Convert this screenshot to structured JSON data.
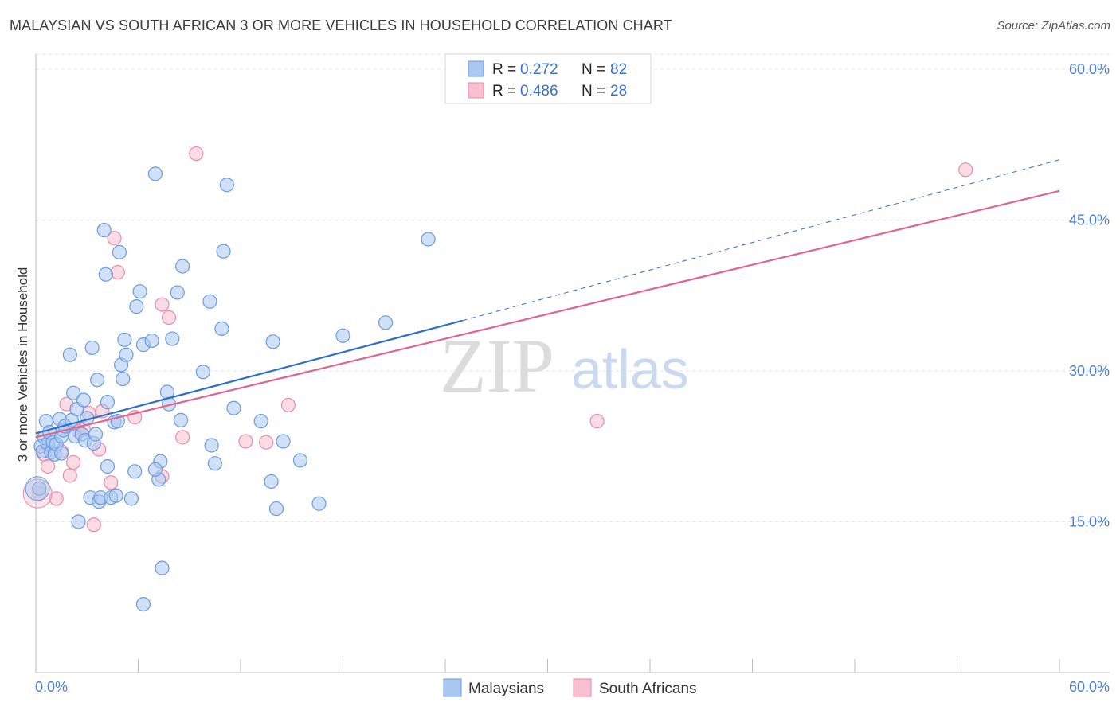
{
  "header": {
    "title": "MALAYSIAN VS SOUTH AFRICAN 3 OR MORE VEHICLES IN HOUSEHOLD CORRELATION CHART",
    "source": "Source: ZipAtlas.com"
  },
  "watermark": {
    "zip": "ZIP",
    "atlas": "atlas"
  },
  "colors": {
    "malaysian_fill": "#a9c8f0",
    "malaysian_stroke": "#6a9be0",
    "malaysian_line": "#2f6fcc",
    "southafrican_fill": "#f7bfd0",
    "southafrican_stroke": "#e88aa8",
    "southafrican_line": "#e0648e",
    "grid": "#e3e3e3",
    "tick_text": "#4a7fcf"
  },
  "legend": {
    "rows": [
      {
        "r_label": "R =",
        "r_value": "0.272",
        "n_label": "N =",
        "n_value": "82"
      },
      {
        "r_label": "R =",
        "r_value": "0.486",
        "n_label": "N =",
        "n_value": "28"
      }
    ]
  },
  "chart_data": {
    "type": "scatter",
    "title": "MALAYSIAN VS SOUTH AFRICAN 3 OR MORE VEHICLES IN HOUSEHOLD CORRELATION CHART",
    "xlabel": "",
    "ylabel": "3 or more Vehicles in Household",
    "xlim": [
      0,
      60
    ],
    "ylim": [
      0,
      61.5
    ],
    "x_tick_labels": [
      "0.0%",
      "60.0%"
    ],
    "y_ticks": [
      15,
      30,
      45,
      60
    ],
    "y_tick_labels": [
      "15.0%",
      "30.0%",
      "45.0%",
      "60.0%"
    ],
    "grid": true,
    "legend_position": "bottom",
    "series": [
      {
        "name": "Malaysians",
        "r": 0.272,
        "n": 82,
        "trend": {
          "x0": 0,
          "y0": 23.8,
          "x1": 25,
          "y1": 35.0,
          "dashed_to_x": 60,
          "dashed_to_y": 51.0
        },
        "points": [
          [
            0.2,
            18.3
          ],
          [
            0.3,
            22.5
          ],
          [
            0.4,
            22.0
          ],
          [
            0.5,
            23.4
          ],
          [
            0.6,
            25.0
          ],
          [
            0.7,
            22.8
          ],
          [
            0.8,
            23.9
          ],
          [
            0.9,
            21.9
          ],
          [
            1.0,
            22.9
          ],
          [
            1.1,
            21.7
          ],
          [
            1.2,
            22.7
          ],
          [
            1.4,
            25.2
          ],
          [
            1.5,
            23.5
          ],
          [
            1.5,
            21.8
          ],
          [
            1.6,
            24.1
          ],
          [
            1.7,
            24.5
          ],
          [
            2.0,
            31.6
          ],
          [
            2.1,
            25.1
          ],
          [
            2.2,
            27.8
          ],
          [
            2.3,
            23.5
          ],
          [
            2.4,
            26.2
          ],
          [
            2.5,
            15.0
          ],
          [
            2.7,
            23.7
          ],
          [
            2.8,
            27.1
          ],
          [
            2.9,
            23.1
          ],
          [
            3.0,
            25.3
          ],
          [
            3.2,
            17.4
          ],
          [
            3.3,
            32.3
          ],
          [
            3.4,
            22.8
          ],
          [
            3.5,
            23.7
          ],
          [
            3.6,
            29.1
          ],
          [
            3.7,
            17.0
          ],
          [
            3.8,
            17.4
          ],
          [
            4.0,
            44.0
          ],
          [
            4.1,
            39.6
          ],
          [
            4.2,
            26.9
          ],
          [
            4.2,
            20.5
          ],
          [
            4.4,
            17.4
          ],
          [
            4.6,
            24.9
          ],
          [
            4.7,
            17.6
          ],
          [
            4.8,
            25.0
          ],
          [
            4.9,
            41.8
          ],
          [
            5.0,
            30.6
          ],
          [
            5.1,
            29.2
          ],
          [
            5.2,
            33.1
          ],
          [
            5.3,
            31.6
          ],
          [
            5.6,
            17.3
          ],
          [
            5.8,
            20.0
          ],
          [
            5.9,
            36.4
          ],
          [
            6.1,
            37.9
          ],
          [
            6.3,
            32.6
          ],
          [
            6.8,
            33.0
          ],
          [
            7.0,
            49.6
          ],
          [
            7.2,
            19.2
          ],
          [
            7.3,
            21.0
          ],
          [
            7.4,
            10.4
          ],
          [
            7.7,
            27.9
          ],
          [
            7.8,
            26.7
          ],
          [
            8.0,
            33.2
          ],
          [
            8.3,
            37.8
          ],
          [
            8.5,
            25.1
          ],
          [
            8.6,
            40.4
          ],
          [
            9.8,
            29.9
          ],
          [
            10.2,
            36.9
          ],
          [
            10.3,
            22.6
          ],
          [
            10.5,
            20.8
          ],
          [
            10.9,
            34.2
          ],
          [
            11.0,
            41.9
          ],
          [
            11.2,
            48.5
          ],
          [
            11.6,
            26.3
          ],
          [
            13.2,
            25.0
          ],
          [
            13.8,
            19.0
          ],
          [
            13.9,
            32.9
          ],
          [
            14.1,
            16.3
          ],
          [
            14.5,
            23.0
          ],
          [
            15.5,
            21.1
          ],
          [
            16.6,
            16.8
          ],
          [
            18.0,
            33.5
          ],
          [
            20.5,
            34.8
          ],
          [
            23.0,
            43.1
          ],
          [
            6.3,
            6.8
          ],
          [
            7.0,
            20.2
          ]
        ]
      },
      {
        "name": "South Africans",
        "r": 0.486,
        "n": 28,
        "trend": {
          "x0": 0,
          "y0": 23.4,
          "x1": 60,
          "y1": 47.9
        },
        "points": [
          [
            0.2,
            17.8
          ],
          [
            0.5,
            21.7
          ],
          [
            0.7,
            20.5
          ],
          [
            1.2,
            17.3
          ],
          [
            1.5,
            22.0
          ],
          [
            1.8,
            26.7
          ],
          [
            2.0,
            19.6
          ],
          [
            2.2,
            20.9
          ],
          [
            2.5,
            24.0
          ],
          [
            2.8,
            24.2
          ],
          [
            3.1,
            25.8
          ],
          [
            3.4,
            14.7
          ],
          [
            3.7,
            22.2
          ],
          [
            3.9,
            26.0
          ],
          [
            4.4,
            18.9
          ],
          [
            4.6,
            43.2
          ],
          [
            4.8,
            39.8
          ],
          [
            5.8,
            25.4
          ],
          [
            7.4,
            36.6
          ],
          [
            7.8,
            35.3
          ],
          [
            7.4,
            19.5
          ],
          [
            9.4,
            51.6
          ],
          [
            12.3,
            23.0
          ],
          [
            13.5,
            22.9
          ],
          [
            14.8,
            26.6
          ],
          [
            32.9,
            25.0
          ],
          [
            54.5,
            50.0
          ],
          [
            8.6,
            23.4
          ]
        ]
      }
    ]
  },
  "bottom_legend": {
    "items": [
      "Malaysians",
      "South Africans"
    ]
  }
}
